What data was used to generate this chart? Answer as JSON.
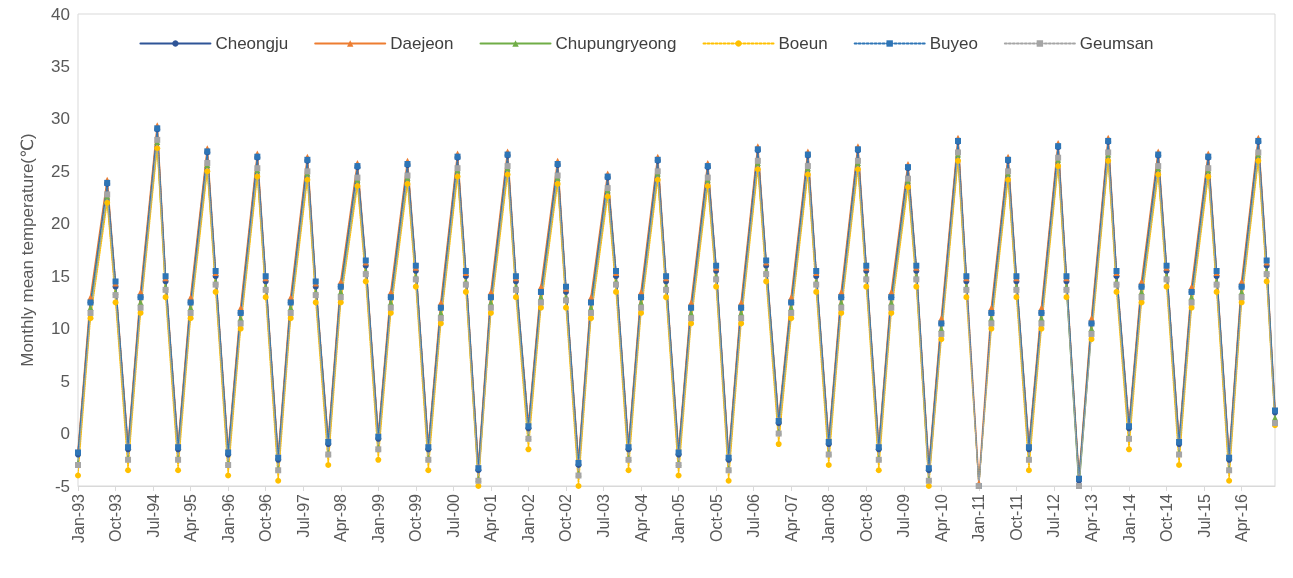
{
  "chart_data": {
    "type": "line",
    "ylabel": "Monthly mean temperature(℃)",
    "legend": "top",
    "grid": false,
    "ylim": [
      -5,
      40
    ],
    "yticks": [
      -5,
      0,
      5,
      10,
      15,
      20,
      25,
      30,
      35,
      40
    ],
    "xlim": [
      "1993-01",
      "2016-12"
    ],
    "xticks": [
      {
        "value": "1993-01",
        "label": "Jan-93"
      },
      {
        "value": "1993-10",
        "label": "Oct-93"
      },
      {
        "value": "1994-07",
        "label": "Jul-94"
      },
      {
        "value": "1995-04",
        "label": "Apr-95"
      },
      {
        "value": "1996-01",
        "label": "Jan-96"
      },
      {
        "value": "1996-10",
        "label": "Oct-96"
      },
      {
        "value": "1997-07",
        "label": "Jul-97"
      },
      {
        "value": "1998-04",
        "label": "Apr-98"
      },
      {
        "value": "1999-01",
        "label": "Jan-99"
      },
      {
        "value": "1999-10",
        "label": "Oct-99"
      },
      {
        "value": "2000-07",
        "label": "Jul-00"
      },
      {
        "value": "2001-04",
        "label": "Apr-01"
      },
      {
        "value": "2002-01",
        "label": "Jan-02"
      },
      {
        "value": "2002-10",
        "label": "Oct-02"
      },
      {
        "value": "2003-07",
        "label": "Jul-03"
      },
      {
        "value": "2004-04",
        "label": "Apr-04"
      },
      {
        "value": "2005-01",
        "label": "Jan-05"
      },
      {
        "value": "2005-10",
        "label": "Oct-05"
      },
      {
        "value": "2006-07",
        "label": "Jul-06"
      },
      {
        "value": "2007-04",
        "label": "Apr-07"
      },
      {
        "value": "2008-01",
        "label": "Jan-08"
      },
      {
        "value": "2008-10",
        "label": "Oct-08"
      },
      {
        "value": "2009-07",
        "label": "Jul-09"
      },
      {
        "value": "2010-04",
        "label": "Apr-10"
      },
      {
        "value": "2011-01",
        "label": "Jan-11"
      },
      {
        "value": "2011-10",
        "label": "Oct-11"
      },
      {
        "value": "2012-07",
        "label": "Jul-12"
      },
      {
        "value": "2013-04",
        "label": "Apr-13"
      },
      {
        "value": "2014-01",
        "label": "Jan-14"
      },
      {
        "value": "2014-10",
        "label": "Oct-14"
      },
      {
        "value": "2015-07",
        "label": "Jul-15"
      },
      {
        "value": "2016-04",
        "label": "Apr-16"
      }
    ],
    "x": [
      "1993-01",
      "1993-04",
      "1993-08",
      "1993-10",
      "1994-01",
      "1994-04",
      "1994-08",
      "1994-10",
      "1995-01",
      "1995-04",
      "1995-08",
      "1995-10",
      "1996-01",
      "1996-04",
      "1996-08",
      "1996-10",
      "1997-01",
      "1997-04",
      "1997-08",
      "1997-10",
      "1998-01",
      "1998-04",
      "1998-08",
      "1998-10",
      "1999-01",
      "1999-04",
      "1999-08",
      "1999-10",
      "2000-01",
      "2000-04",
      "2000-08",
      "2000-10",
      "2001-01",
      "2001-04",
      "2001-08",
      "2001-10",
      "2002-01",
      "2002-04",
      "2002-08",
      "2002-10",
      "2003-01",
      "2003-04",
      "2003-08",
      "2003-10",
      "2004-01",
      "2004-04",
      "2004-08",
      "2004-10",
      "2005-01",
      "2005-04",
      "2005-08",
      "2005-10",
      "2006-01",
      "2006-04",
      "2006-08",
      "2006-10",
      "2007-01",
      "2007-04",
      "2007-08",
      "2007-10",
      "2008-01",
      "2008-04",
      "2008-08",
      "2008-10",
      "2009-01",
      "2009-04",
      "2009-08",
      "2009-10",
      "2010-01",
      "2010-04",
      "2010-08",
      "2010-10",
      "2011-01",
      "2011-04",
      "2011-08",
      "2011-10",
      "2012-01",
      "2012-04",
      "2012-08",
      "2012-10",
      "2013-01",
      "2013-04",
      "2013-08",
      "2013-10",
      "2014-01",
      "2014-04",
      "2014-08",
      "2014-10",
      "2015-01",
      "2015-04",
      "2015-08",
      "2015-10",
      "2016-01",
      "2016-04",
      "2016-08",
      "2016-10",
      "2016-12"
    ],
    "series": [
      {
        "name": "Cheongju",
        "color": "#2f5597",
        "line_style": "solid",
        "marker": "circle",
        "values": [
          -2,
          12.5,
          23.8,
          14,
          -1.5,
          13,
          29,
          14.5,
          -1.5,
          12.5,
          26.8,
          15,
          -2,
          11.5,
          26.3,
          14.5,
          -2.5,
          12.5,
          26,
          14,
          -1,
          14,
          25.4,
          16,
          -0.5,
          13,
          25.6,
          15.5,
          -1.5,
          12,
          26.3,
          15,
          -3.5,
          13,
          26.5,
          14.5,
          0.5,
          13.5,
          25.6,
          13.5,
          -3,
          12.5,
          24.4,
          15,
          -1.5,
          13,
          26,
          14.5,
          -2,
          12,
          25.4,
          15.5,
          -2.5,
          12,
          27,
          16,
          1,
          12.5,
          26.5,
          15,
          -1,
          13,
          27,
          15.5,
          -1.5,
          13,
          25.3,
          15.5,
          -3.5,
          10.5,
          27.8,
          14.5,
          null,
          11.5,
          26,
          14.5,
          -1.5,
          11.5,
          27.3,
          14.5,
          -4.5,
          10.5,
          27.8,
          15,
          0.5,
          14,
          26.5,
          15.5,
          -1,
          13.5,
          26.3,
          15,
          -2.5,
          14,
          27.8,
          16,
          2
        ]
      },
      {
        "name": "Daejeon",
        "color": "#ed7d31",
        "line_style": "solid",
        "marker": "triangle",
        "values": [
          -1.7,
          13,
          24.2,
          14.3,
          -1.2,
          13.5,
          29.4,
          14.8,
          -1.2,
          13,
          27.2,
          15.3,
          -1.7,
          12,
          26.7,
          14.8,
          -2.2,
          13,
          26.4,
          14.3,
          -0.7,
          14.5,
          25.8,
          16.3,
          -0.2,
          13.5,
          26,
          15.8,
          -1.2,
          12.5,
          26.7,
          15.3,
          -3.2,
          13.5,
          26.9,
          14.8,
          0.8,
          14,
          26,
          13.8,
          -2.7,
          13,
          24.8,
          15.3,
          -1.2,
          13.5,
          26.4,
          14.8,
          -1.7,
          12.5,
          25.8,
          15.8,
          -2.2,
          12.5,
          27.4,
          16.3,
          1.3,
          13,
          26.9,
          15.3,
          -0.7,
          13.5,
          27.4,
          15.8,
          -1.2,
          13.5,
          25.7,
          15.8,
          -3.2,
          11,
          28.2,
          14.8,
          -4.7,
          12,
          26.4,
          14.8,
          -1.2,
          12,
          27.7,
          14.8,
          -4.2,
          11,
          28.2,
          15.3,
          0.8,
          14.5,
          26.9,
          15.8,
          -0.7,
          14,
          26.7,
          15.3,
          -2.2,
          14.5,
          28.2,
          16.3,
          2.3
        ]
      },
      {
        "name": "Chupungryeong",
        "color": "#70ad47",
        "line_style": "solid",
        "marker": "triangle",
        "values": [
          -2.8,
          12,
          22.6,
          13.5,
          -2.3,
          12.5,
          27.8,
          14,
          -2.3,
          12,
          25.6,
          14.5,
          -2.8,
          11,
          25.1,
          14,
          -3.3,
          12,
          24.8,
          13.5,
          -1.8,
          13.5,
          24.2,
          15.5,
          -1.3,
          12.5,
          24.4,
          15,
          -2.3,
          11.5,
          25.1,
          14.5,
          -4.3,
          12.5,
          25.3,
          14,
          -0.3,
          13,
          24.4,
          13,
          -3.8,
          12,
          23.2,
          14.5,
          -2.3,
          12.5,
          24.8,
          14,
          -2.8,
          11.5,
          24.2,
          15,
          -3.3,
          11.5,
          25.8,
          15.5,
          0.2,
          12,
          25.3,
          14.5,
          -1.8,
          12.5,
          25.8,
          15,
          -2.3,
          12.5,
          24.1,
          15,
          -4.3,
          10,
          26.6,
          14,
          null,
          11,
          24.8,
          14,
          -2.3,
          11,
          26.1,
          14,
          -5,
          10,
          26.6,
          14.5,
          -0.3,
          13.5,
          25.3,
          15,
          -1.8,
          13,
          25.1,
          14.5,
          -3.3,
          13.5,
          26.6,
          15.5,
          1.5
        ]
      },
      {
        "name": "Boeun",
        "color": "#ffc000",
        "line_style": "dotted",
        "marker": "circle",
        "values": [
          -4,
          11,
          22,
          12.5,
          -3.5,
          11.5,
          27.2,
          13,
          -3.5,
          11,
          25,
          13.5,
          -4,
          10,
          24.5,
          13,
          -4.5,
          11,
          24.2,
          12.5,
          -3,
          12.5,
          23.6,
          14.5,
          -2.5,
          11.5,
          23.8,
          14,
          -3.5,
          10.5,
          24.5,
          13.5,
          -5,
          11.5,
          24.7,
          13,
          -1.5,
          12,
          23.8,
          12,
          -5,
          11,
          22.6,
          13.5,
          -3.5,
          11.5,
          24.2,
          13,
          -4,
          10.5,
          23.6,
          14,
          -4.5,
          10.5,
          25.2,
          14.5,
          -1,
          11,
          24.7,
          13.5,
          -3,
          11.5,
          25.2,
          14,
          -3.5,
          11.5,
          23.5,
          14,
          -5,
          9,
          26,
          13,
          -5,
          10,
          24.2,
          13,
          -3.5,
          10,
          25.5,
          13,
          null,
          9,
          26,
          13.5,
          -1.5,
          12.5,
          24.7,
          14,
          -3,
          12,
          24.5,
          13.5,
          -4.5,
          12.5,
          26,
          14.5,
          0.8
        ]
      },
      {
        "name": "Buyeo",
        "color": "#2e75b6",
        "line_style": "dotted",
        "marker": "square",
        "values": [
          -1.8,
          12.5,
          23.9,
          14.5,
          -1.3,
          13,
          29.1,
          15,
          -1.3,
          12.5,
          26.9,
          15.5,
          -1.8,
          11.5,
          26.4,
          15,
          -2.3,
          12.5,
          26.1,
          14.5,
          -0.8,
          14,
          25.5,
          16.5,
          -0.3,
          13,
          25.7,
          16,
          -1.3,
          12,
          26.4,
          15.5,
          -3.3,
          13,
          26.6,
          15,
          0.7,
          13.5,
          25.7,
          14,
          -2.8,
          12.5,
          24.5,
          15.5,
          -1.3,
          13,
          26.1,
          15,
          -1.8,
          12,
          25.5,
          16,
          -2.3,
          12,
          27.1,
          16.5,
          1.2,
          12.5,
          26.6,
          15.5,
          -0.8,
          13,
          27.1,
          16,
          -1.3,
          13,
          25.4,
          16,
          -3.3,
          10.5,
          27.9,
          15,
          -5,
          11.5,
          26.1,
          15,
          -1.3,
          11.5,
          27.4,
          15,
          -4.3,
          10.5,
          27.9,
          15.5,
          0.7,
          14,
          26.6,
          16,
          -0.8,
          13.5,
          26.4,
          15.5,
          -2.3,
          14,
          27.9,
          16.5,
          2.2
        ]
      },
      {
        "name": "Geumsan",
        "color": "#a5a5a5",
        "line_style": "dotted",
        "marker": "square",
        "values": [
          -3,
          11.5,
          22.8,
          13.2,
          -2.5,
          12,
          28,
          13.7,
          -2.5,
          11.5,
          25.8,
          14.2,
          -3,
          10.5,
          25.3,
          13.7,
          -3.5,
          11.5,
          25,
          13.2,
          -2,
          13,
          24.4,
          15.2,
          -1.5,
          12,
          24.6,
          14.7,
          -2.5,
          11,
          25.3,
          14.2,
          -4.5,
          12,
          25.5,
          13.7,
          -0.5,
          12.5,
          24.6,
          12.7,
          -4,
          11.5,
          23.4,
          14.2,
          -2.5,
          12,
          25,
          13.7,
          -3,
          11,
          24.4,
          14.7,
          -3.5,
          11,
          26,
          15.2,
          0,
          11.5,
          25.5,
          14.2,
          -2,
          12,
          26,
          14.7,
          -2.5,
          12,
          24.3,
          14.7,
          -4.5,
          9.5,
          26.8,
          13.7,
          -5,
          10.5,
          25,
          13.7,
          -2.5,
          10.5,
          26.3,
          13.7,
          -5,
          9.5,
          26.8,
          14.2,
          -0.5,
          13,
          25.5,
          14.7,
          -2,
          12.5,
          25.3,
          14.2,
          -3.5,
          13,
          26.8,
          15.2,
          1
        ]
      }
    ]
  }
}
